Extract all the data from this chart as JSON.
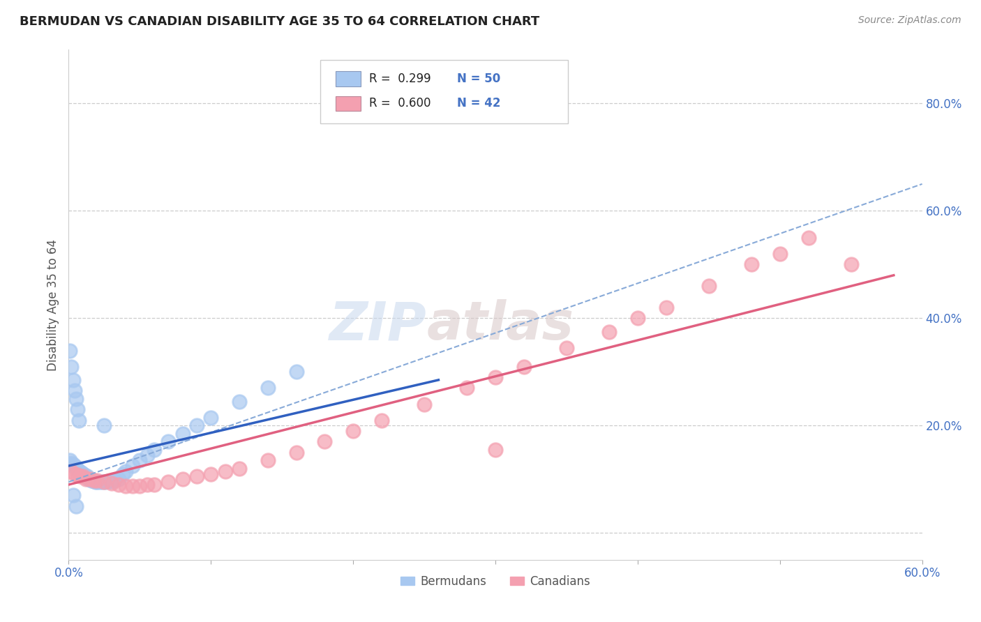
{
  "title": "BERMUDAN VS CANADIAN DISABILITY AGE 35 TO 64 CORRELATION CHART",
  "source": "Source: ZipAtlas.com",
  "ylabel": "Disability Age 35 to 64",
  "watermark_top": "ZIP",
  "watermark_bot": "atlas",
  "legend_r1": "R =  0.299",
  "legend_n1": "N = 50",
  "legend_r2": "R =  0.600",
  "legend_n2": "N = 42",
  "color_bermuda": "#a8c8f0",
  "color_canada": "#f4a0b0",
  "color_blue_text": "#4472c4",
  "color_pink_text": "#e07090",
  "xlim": [
    0.0,
    0.6
  ],
  "ylim": [
    -0.05,
    0.9
  ],
  "xtick_values": [
    0.0,
    0.1,
    0.2,
    0.3,
    0.4,
    0.5,
    0.6
  ],
  "xtick_labels": [
    "0.0%",
    "",
    "",
    "",
    "",
    "",
    "60.0%"
  ],
  "ytick_values": [
    0.0,
    0.2,
    0.4,
    0.6,
    0.8
  ],
  "ytick_labels": [
    "",
    "20.0%",
    "40.0%",
    "60.0%",
    "80.0%"
  ],
  "background_color": "#ffffff",
  "grid_color": "#cccccc",
  "bermuda_x": [
    0.001,
    0.002,
    0.003,
    0.004,
    0.005,
    0.006,
    0.007,
    0.008,
    0.009,
    0.01,
    0.011,
    0.012,
    0.013,
    0.014,
    0.015,
    0.016,
    0.017,
    0.018,
    0.019,
    0.02,
    0.022,
    0.024,
    0.026,
    0.028,
    0.03,
    0.032,
    0.035,
    0.038,
    0.04,
    0.045,
    0.05,
    0.055,
    0.06,
    0.07,
    0.08,
    0.09,
    0.1,
    0.12,
    0.14,
    0.16,
    0.001,
    0.002,
    0.003,
    0.004,
    0.005,
    0.006,
    0.007,
    0.003,
    0.005,
    0.025
  ],
  "bermuda_y": [
    0.135,
    0.13,
    0.128,
    0.125,
    0.12,
    0.118,
    0.115,
    0.113,
    0.112,
    0.11,
    0.108,
    0.105,
    0.105,
    0.1,
    0.1,
    0.098,
    0.098,
    0.097,
    0.095,
    0.095,
    0.095,
    0.095,
    0.095,
    0.096,
    0.097,
    0.098,
    0.1,
    0.11,
    0.115,
    0.125,
    0.135,
    0.145,
    0.155,
    0.17,
    0.185,
    0.2,
    0.215,
    0.245,
    0.27,
    0.3,
    0.34,
    0.31,
    0.285,
    0.265,
    0.25,
    0.23,
    0.21,
    0.07,
    0.05,
    0.2
  ],
  "canada_x": [
    0.002,
    0.004,
    0.006,
    0.008,
    0.01,
    0.012,
    0.015,
    0.018,
    0.02,
    0.025,
    0.03,
    0.035,
    0.04,
    0.045,
    0.05,
    0.055,
    0.06,
    0.07,
    0.08,
    0.09,
    0.1,
    0.11,
    0.12,
    0.14,
    0.16,
    0.18,
    0.2,
    0.22,
    0.25,
    0.28,
    0.3,
    0.32,
    0.35,
    0.38,
    0.4,
    0.42,
    0.45,
    0.48,
    0.5,
    0.52,
    0.55,
    0.3
  ],
  "canada_y": [
    0.115,
    0.11,
    0.108,
    0.105,
    0.105,
    0.1,
    0.1,
    0.098,
    0.098,
    0.095,
    0.092,
    0.09,
    0.088,
    0.088,
    0.088,
    0.09,
    0.09,
    0.095,
    0.1,
    0.105,
    0.11,
    0.115,
    0.12,
    0.135,
    0.15,
    0.17,
    0.19,
    0.21,
    0.24,
    0.27,
    0.29,
    0.31,
    0.345,
    0.375,
    0.4,
    0.42,
    0.46,
    0.5,
    0.52,
    0.55,
    0.5,
    0.155
  ],
  "bermuda_line_x": [
    0.0,
    0.26
  ],
  "bermuda_line_y": [
    0.125,
    0.285
  ],
  "canada_line_x": [
    0.0,
    0.58
  ],
  "canada_line_y": [
    0.09,
    0.48
  ],
  "dashed_line_x": [
    0.0,
    0.6
  ],
  "dashed_line_y": [
    0.095,
    0.65
  ]
}
